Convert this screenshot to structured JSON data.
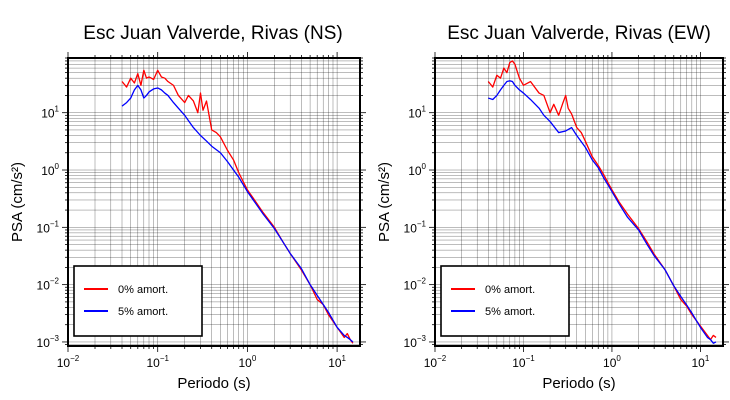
{
  "chart_data": [
    {
      "type": "line",
      "title": "Esc Juan Valverde, Rivas (NS)",
      "xlabel": "Periodo (s)",
      "ylabel": "PSA (cm/s²)",
      "xscale": "log",
      "yscale": "log",
      "xlim": [
        0.01,
        18
      ],
      "ylim": [
        0.00085,
        90
      ],
      "grid": true,
      "legend_position": "bottom-left",
      "xticks": [
        {
          "base": "10",
          "exp": "−2",
          "value": 0.01
        },
        {
          "base": "10",
          "exp": "−1",
          "value": 0.1
        },
        {
          "base": "10",
          "exp": "0",
          "value": 1
        },
        {
          "base": "10",
          "exp": "1",
          "value": 10
        }
      ],
      "yticks": [
        {
          "base": "10",
          "exp": "−3",
          "value": 0.001
        },
        {
          "base": "10",
          "exp": "−2",
          "value": 0.01
        },
        {
          "base": "10",
          "exp": "−1",
          "value": 0.1
        },
        {
          "base": "10",
          "exp": "0",
          "value": 1
        },
        {
          "base": "10",
          "exp": "1",
          "value": 10
        }
      ],
      "series": [
        {
          "name": "0% amort.",
          "color": "#ff0000",
          "x": [
            0.04,
            0.045,
            0.05,
            0.055,
            0.06,
            0.065,
            0.07,
            0.075,
            0.08,
            0.09,
            0.1,
            0.11,
            0.12,
            0.13,
            0.15,
            0.17,
            0.2,
            0.22,
            0.25,
            0.28,
            0.3,
            0.32,
            0.35,
            0.4,
            0.45,
            0.5,
            0.6,
            0.7,
            0.8,
            1,
            1.2,
            1.5,
            2,
            2.5,
            3,
            4,
            5,
            6,
            7,
            8,
            10,
            12,
            13,
            14,
            15
          ],
          "y": [
            35,
            28,
            40,
            33,
            48,
            30,
            55,
            40,
            42,
            38,
            55,
            42,
            40,
            35,
            30,
            20,
            15,
            20,
            16,
            10,
            22,
            11,
            16,
            5,
            4.5,
            3.8,
            2.2,
            1.5,
            0.9,
            0.45,
            0.3,
            0.18,
            0.1,
            0.055,
            0.035,
            0.018,
            0.01,
            0.0055,
            0.0045,
            0.003,
            0.0018,
            0.0012,
            0.0014,
            0.0011,
            0.00095
          ]
        },
        {
          "name": "5% amort.",
          "color": "#0000ff",
          "x": [
            0.04,
            0.045,
            0.05,
            0.055,
            0.06,
            0.065,
            0.07,
            0.075,
            0.08,
            0.09,
            0.1,
            0.11,
            0.12,
            0.13,
            0.15,
            0.17,
            0.2,
            0.25,
            0.3,
            0.35,
            0.4,
            0.5,
            0.6,
            0.7,
            0.8,
            1,
            1.2,
            1.5,
            2,
            2.5,
            3,
            4,
            5,
            6,
            7,
            8,
            10,
            12,
            13,
            14,
            15
          ],
          "y": [
            13,
            15,
            18,
            25,
            30,
            25,
            18,
            20,
            23,
            26,
            27,
            25,
            22,
            20,
            15,
            12,
            9,
            5.5,
            4,
            3.2,
            2.6,
            2,
            1.4,
            1,
            0.75,
            0.42,
            0.28,
            0.17,
            0.095,
            0.055,
            0.035,
            0.019,
            0.01,
            0.0065,
            0.0045,
            0.0033,
            0.0018,
            0.0013,
            0.0012,
            0.0011,
            0.001
          ]
        }
      ],
      "legend": [
        {
          "label": "0% amort.",
          "color": "#ff0000"
        },
        {
          "label": "5% amort.",
          "color": "#0000ff"
        }
      ]
    },
    {
      "type": "line",
      "title": "Esc Juan Valverde, Rivas (EW)",
      "xlabel": "Periodo (s)",
      "ylabel": "PSA (cm/s²)",
      "xscale": "log",
      "yscale": "log",
      "xlim": [
        0.01,
        18
      ],
      "ylim": [
        0.00085,
        90
      ],
      "grid": true,
      "legend_position": "bottom-left",
      "xticks": [
        {
          "base": "10",
          "exp": "−2",
          "value": 0.01
        },
        {
          "base": "10",
          "exp": "−1",
          "value": 0.1
        },
        {
          "base": "10",
          "exp": "0",
          "value": 1
        },
        {
          "base": "10",
          "exp": "1",
          "value": 10
        }
      ],
      "yticks": [
        {
          "base": "10",
          "exp": "−3",
          "value": 0.001
        },
        {
          "base": "10",
          "exp": "−2",
          "value": 0.01
        },
        {
          "base": "10",
          "exp": "−1",
          "value": 0.1
        },
        {
          "base": "10",
          "exp": "0",
          "value": 1
        },
        {
          "base": "10",
          "exp": "1",
          "value": 10
        }
      ],
      "series": [
        {
          "name": "0% amort.",
          "color": "#ff0000",
          "x": [
            0.04,
            0.045,
            0.05,
            0.055,
            0.06,
            0.065,
            0.07,
            0.075,
            0.08,
            0.09,
            0.1,
            0.12,
            0.15,
            0.17,
            0.2,
            0.22,
            0.25,
            0.28,
            0.3,
            0.32,
            0.35,
            0.4,
            0.45,
            0.5,
            0.6,
            0.7,
            0.8,
            1,
            1.2,
            1.5,
            2,
            2.5,
            3,
            4,
            5,
            6,
            7,
            8,
            10,
            12,
            13,
            14,
            15
          ],
          "y": [
            35,
            28,
            45,
            40,
            60,
            50,
            75,
            80,
            70,
            40,
            30,
            35,
            22,
            20,
            10,
            14,
            9,
            15,
            20,
            12,
            9.5,
            5.5,
            4.5,
            3.2,
            1.7,
            1.2,
            0.85,
            0.45,
            0.28,
            0.17,
            0.095,
            0.055,
            0.034,
            0.018,
            0.0095,
            0.0055,
            0.0042,
            0.003,
            0.0019,
            0.0013,
            0.0011,
            0.0013,
            0.0012
          ]
        },
        {
          "name": "5% amort.",
          "color": "#0000ff",
          "x": [
            0.04,
            0.045,
            0.05,
            0.055,
            0.06,
            0.065,
            0.07,
            0.075,
            0.08,
            0.09,
            0.1,
            0.12,
            0.15,
            0.17,
            0.2,
            0.25,
            0.3,
            0.35,
            0.4,
            0.5,
            0.6,
            0.7,
            0.8,
            1,
            1.2,
            1.5,
            2,
            2.5,
            3,
            4,
            5,
            6,
            7,
            8,
            10,
            12,
            13,
            14,
            15
          ],
          "y": [
            18,
            17,
            20,
            25,
            30,
            35,
            36,
            35,
            30,
            25,
            22,
            17,
            12,
            9,
            7,
            4.5,
            4.8,
            5.5,
            4,
            2.5,
            1.5,
            1.1,
            0.75,
            0.42,
            0.26,
            0.15,
            0.09,
            0.05,
            0.032,
            0.018,
            0.0095,
            0.0062,
            0.0044,
            0.0032,
            0.0018,
            0.0012,
            0.0011,
            0.00095,
            0.001
          ]
        }
      ],
      "legend": [
        {
          "label": "0% amort.",
          "color": "#ff0000"
        },
        {
          "label": "5% amort.",
          "color": "#0000ff"
        }
      ]
    }
  ]
}
